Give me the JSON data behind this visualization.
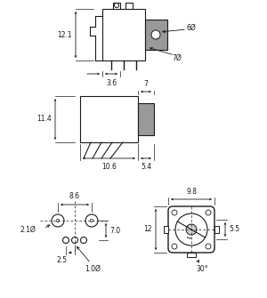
{
  "bg_color": "#ffffff",
  "line_color": "#1a1a1a",
  "gray_fill": "#999999",
  "light_gray": "#cccccc",
  "dim_color": "#1a1a1a",
  "annotations": {
    "v1_height": "12.1",
    "v1_width": "3.6",
    "v1_shaft": "7Ø",
    "v1_knob": "6Ø",
    "v2_height": "11.4",
    "v2_w1": "10.6",
    "v2_w2": "5.4",
    "v2_top": "7",
    "bl_w": "8.6",
    "bl_h": "7.0",
    "bl_d1": "2.1Ø",
    "bl_d2": "2.5",
    "bl_d3": "1.0Ø",
    "br_w": "9.8",
    "br_h": "12",
    "br_r": "5.5",
    "br_angle": "30°"
  }
}
